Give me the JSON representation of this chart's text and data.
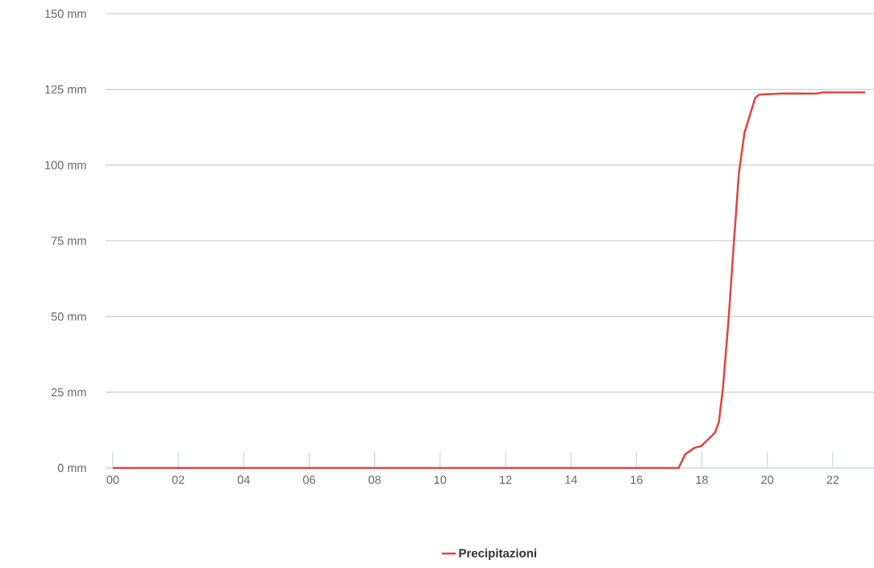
{
  "chart_data": {
    "type": "line",
    "x": [
      0,
      17.29,
      17.49,
      17.78,
      17.98,
      18.4,
      18.52,
      18.64,
      18.81,
      18.97,
      19.13,
      19.3,
      19.63,
      19.75,
      20.53,
      21.51,
      21.68,
      22.99
    ],
    "series": [
      {
        "name": "Precipitazioni",
        "color": "#e0443e",
        "values": [
          0,
          0,
          4.5,
          6.7,
          7.2,
          11.6,
          15.2,
          25.9,
          48.2,
          73.2,
          97.2,
          110.6,
          122.2,
          123.3,
          123.7,
          123.6,
          124,
          124
        ]
      }
    ],
    "xlim": [
      -0.22,
      23.26
    ],
    "ylim": [
      0,
      150
    ],
    "xticks": [
      {
        "value": 0,
        "label": "00"
      },
      {
        "value": 2,
        "label": "02"
      },
      {
        "value": 4,
        "label": "04"
      },
      {
        "value": 6,
        "label": "06"
      },
      {
        "value": 8,
        "label": "08"
      },
      {
        "value": 10,
        "label": "10"
      },
      {
        "value": 12,
        "label": "12"
      },
      {
        "value": 14,
        "label": "14"
      },
      {
        "value": 16,
        "label": "16"
      },
      {
        "value": 18,
        "label": "18"
      },
      {
        "value": 20,
        "label": "20"
      },
      {
        "value": 22,
        "label": "22"
      }
    ],
    "yticks": [
      {
        "value": 0,
        "label": "0 mm"
      },
      {
        "value": 25,
        "label": "25 mm"
      },
      {
        "value": 50,
        "label": "50 mm"
      },
      {
        "value": 75,
        "label": "75 mm"
      },
      {
        "value": 100,
        "label": "100 mm"
      },
      {
        "value": 125,
        "label": "125 mm"
      },
      {
        "value": 150,
        "label": "150 mm"
      }
    ],
    "grid": "y",
    "legend": "bottom",
    "marker": "none",
    "line_style": "solid"
  }
}
